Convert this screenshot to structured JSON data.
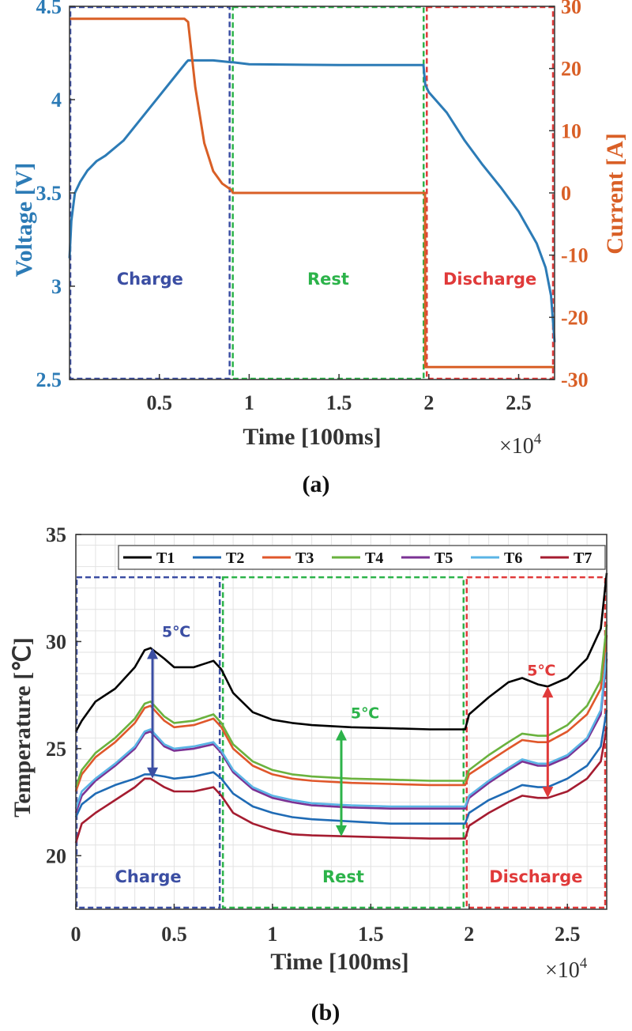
{
  "chart_data": [
    {
      "type": "line",
      "caption": "(a)",
      "xlabel": "Time [100ms]",
      "x_multiplier": "×10^4",
      "x_multiplier_base": "×10",
      "x_multiplier_exp": "4",
      "ylabel": "Voltage [V]",
      "y2label": "Current [A]",
      "xlim": [
        0,
        27000
      ],
      "ylim": [
        2.5,
        4.5
      ],
      "y2lim": [
        -30,
        30
      ],
      "x_ticks": [
        5000,
        10000,
        15000,
        20000,
        25000
      ],
      "x_tick_labels": [
        "0.5",
        "1",
        "1.5",
        "2",
        "2.5"
      ],
      "y_ticks": [
        2.5,
        3,
        3.5,
        4,
        4.5
      ],
      "y_tick_labels": [
        "2.5",
        "3",
        "3.5",
        "4",
        "4.5"
      ],
      "y2_ticks": [
        -30,
        -20,
        -10,
        0,
        10,
        20,
        30
      ],
      "y2_tick_labels": [
        "-30",
        "-20",
        "-10",
        "0",
        "10",
        "20",
        "30"
      ],
      "colors": {
        "voltage": "#2c7bb6",
        "current": "#d95f26",
        "axis_left": "#2c7bb6",
        "axis_right": "#d95f26"
      },
      "phases": [
        {
          "label": "Charge",
          "x0": 0,
          "x1": 9000,
          "color": "#3b4ea3"
        },
        {
          "label": "Rest",
          "x0": 9000,
          "x1": 19800,
          "color": "#2cb34a"
        },
        {
          "label": "Discharge",
          "x0": 19800,
          "x1": 27000,
          "color": "#e03a3a"
        }
      ],
      "series": [
        {
          "name": "Voltage",
          "axis": "left",
          "x": [
            0,
            100,
            300,
            600,
            1000,
            1500,
            2000,
            3000,
            4000,
            5000,
            6000,
            6500,
            6600,
            7000,
            8000,
            9000,
            9100,
            10000,
            15000,
            19700,
            19800,
            20000,
            21000,
            22000,
            23000,
            24000,
            25000,
            26000,
            26500,
            26800,
            27000
          ],
          "y": [
            3.15,
            3.35,
            3.5,
            3.56,
            3.62,
            3.67,
            3.7,
            3.78,
            3.9,
            4.02,
            4.14,
            4.2,
            4.21,
            4.21,
            4.21,
            4.2,
            4.2,
            4.19,
            4.185,
            4.185,
            4.08,
            4.04,
            3.93,
            3.78,
            3.65,
            3.53,
            3.4,
            3.23,
            3.1,
            2.95,
            2.7
          ]
        },
        {
          "name": "Current",
          "axis": "right",
          "x": [
            0,
            6400,
            6600,
            7000,
            7500,
            8000,
            8500,
            9000,
            9100,
            19790,
            19800,
            27000
          ],
          "y": [
            28,
            28,
            27.5,
            17,
            8,
            3.5,
            1.5,
            0.5,
            0,
            0,
            -28,
            -28
          ]
        }
      ]
    },
    {
      "type": "line",
      "caption": "(b)",
      "xlabel": "Time [100ms]",
      "x_multiplier": "×10^4",
      "x_multiplier_base": "×10",
      "x_multiplier_exp": "4",
      "ylabel": "Temperature [℃]",
      "xlim": [
        0,
        27000
      ],
      "ylim": [
        17.5,
        35
      ],
      "x_ticks": [
        0,
        5000,
        10000,
        15000,
        20000,
        25000
      ],
      "x_tick_labels": [
        "0",
        "0.5",
        "1",
        "1.5",
        "2",
        "2.5"
      ],
      "y_ticks": [
        20,
        25,
        30,
        35
      ],
      "y_tick_labels": [
        "20",
        "25",
        "30",
        "35"
      ],
      "grid": true,
      "legend_position": "top",
      "phases": [
        {
          "label": "Charge",
          "x0": 0,
          "x1": 7400,
          "color": "#3b4ea3"
        },
        {
          "label": "Rest",
          "x0": 7400,
          "x1": 19800,
          "color": "#2cb34a"
        },
        {
          "label": "Discharge",
          "x0": 19800,
          "x1": 27000,
          "color": "#e03a3a"
        }
      ],
      "annotations": [
        {
          "text": "5℃",
          "x": 3900,
          "y_top": 29.7,
          "y_bottom": 23.6,
          "color": "#3b4ea3"
        },
        {
          "text": "5℃",
          "x": 13500,
          "y_top": 25.9,
          "y_bottom": 20.9,
          "color": "#2cb34a"
        },
        {
          "text": "5℃",
          "x": 24000,
          "y_top": 27.9,
          "y_bottom": 22.7,
          "color": "#e03a3a"
        }
      ],
      "x": [
        0,
        300,
        1000,
        2000,
        3000,
        3500,
        3800,
        4500,
        5000,
        6000,
        7000,
        7400,
        8000,
        9000,
        10000,
        11000,
        12000,
        14000,
        16000,
        18000,
        19800,
        20000,
        21000,
        22000,
        22700,
        23500,
        24000,
        25000,
        26000,
        26700,
        27000
      ],
      "series": [
        {
          "name": "T1",
          "color": "#000000",
          "y": [
            25.8,
            26.3,
            27.2,
            27.8,
            28.8,
            29.6,
            29.7,
            29.2,
            28.8,
            28.8,
            29.1,
            28.7,
            27.6,
            26.7,
            26.35,
            26.2,
            26.1,
            26.0,
            25.95,
            25.9,
            25.9,
            26.6,
            27.4,
            28.1,
            28.3,
            28.0,
            27.9,
            28.3,
            29.2,
            30.6,
            33.2
          ]
        },
        {
          "name": "T2",
          "color": "#1f6bb5",
          "y": [
            21.8,
            22.4,
            22.9,
            23.3,
            23.6,
            23.8,
            23.8,
            23.7,
            23.6,
            23.7,
            23.9,
            23.6,
            22.9,
            22.3,
            22.0,
            21.8,
            21.7,
            21.6,
            21.5,
            21.5,
            21.5,
            22.0,
            22.6,
            23.0,
            23.3,
            23.2,
            23.2,
            23.6,
            24.2,
            25.1,
            26.8
          ]
        },
        {
          "name": "T3",
          "color": "#e0572b",
          "y": [
            23.0,
            23.8,
            24.6,
            25.3,
            26.2,
            26.9,
            27.0,
            26.3,
            26.0,
            26.1,
            26.4,
            26.0,
            25.0,
            24.2,
            23.8,
            23.6,
            23.5,
            23.4,
            23.35,
            23.3,
            23.3,
            23.8,
            24.4,
            25.0,
            25.4,
            25.3,
            25.3,
            25.8,
            26.6,
            27.8,
            30.3
          ]
        },
        {
          "name": "T4",
          "color": "#6ab23e",
          "y": [
            23.2,
            24.0,
            24.8,
            25.5,
            26.4,
            27.1,
            27.2,
            26.5,
            26.2,
            26.3,
            26.6,
            26.2,
            25.2,
            24.4,
            24.0,
            23.8,
            23.7,
            23.6,
            23.55,
            23.5,
            23.5,
            24.0,
            24.7,
            25.3,
            25.7,
            25.6,
            25.6,
            26.1,
            27.0,
            28.2,
            30.8
          ]
        },
        {
          "name": "T5",
          "color": "#7b3294",
          "y": [
            22.0,
            22.8,
            23.5,
            24.2,
            25.0,
            25.7,
            25.8,
            25.1,
            24.9,
            25.0,
            25.2,
            24.8,
            23.9,
            23.1,
            22.7,
            22.5,
            22.35,
            22.25,
            22.2,
            22.2,
            22.2,
            22.7,
            23.4,
            24.0,
            24.4,
            24.2,
            24.2,
            24.6,
            25.4,
            26.6,
            29.2
          ]
        },
        {
          "name": "T6",
          "color": "#5ab4e5",
          "y": [
            22.2,
            23.0,
            23.6,
            24.3,
            25.1,
            25.8,
            25.9,
            25.2,
            25.0,
            25.1,
            25.3,
            24.9,
            24.0,
            23.2,
            22.8,
            22.6,
            22.45,
            22.35,
            22.3,
            22.3,
            22.3,
            22.8,
            23.5,
            24.1,
            24.5,
            24.3,
            24.3,
            24.7,
            25.5,
            26.8,
            29.5
          ]
        },
        {
          "name": "T7",
          "color": "#a51c30",
          "y": [
            20.6,
            21.5,
            22.0,
            22.6,
            23.2,
            23.6,
            23.6,
            23.2,
            23.0,
            23.0,
            23.2,
            22.8,
            22.0,
            21.5,
            21.2,
            21.0,
            20.95,
            20.9,
            20.85,
            20.8,
            20.8,
            21.4,
            22.0,
            22.5,
            22.8,
            22.7,
            22.7,
            23.0,
            23.6,
            24.4,
            26.0
          ]
        }
      ]
    }
  ]
}
